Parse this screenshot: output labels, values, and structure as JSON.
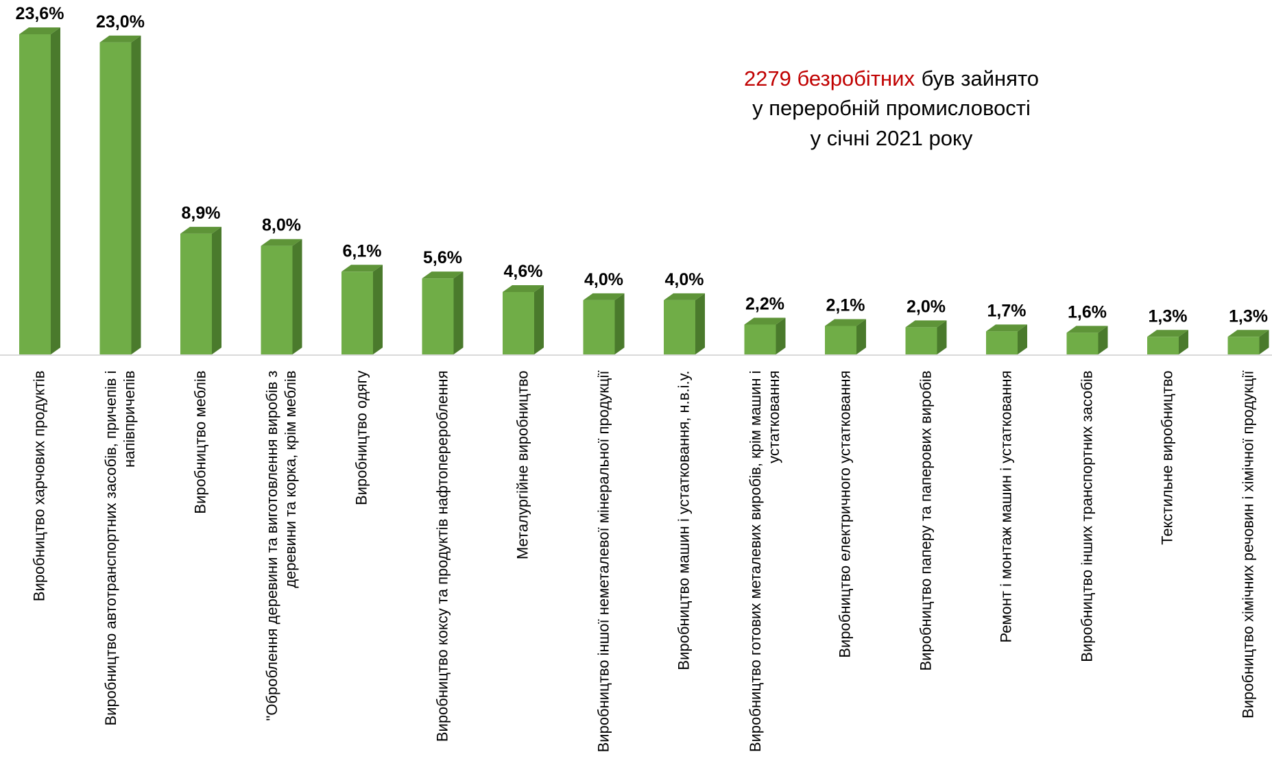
{
  "chart_data": {
    "type": "bar3d",
    "annotation": {
      "highlight": "2279 безробітних",
      "rest": "був зайнято",
      "lines": [
        "у переробній промисловості",
        "у січні 2021 року"
      ]
    },
    "categories": [
      "Виробництво харчових продуктів",
      "Виробництво автотранспортних засобів, причепів і напівпричепів",
      "Виробництво меблів",
      "\"Оброблення деревини та виготовлення виробів з деревини та корка, крім меблів",
      "Виробництво одягу",
      "Виробництво коксу та продуктів нафтоперероблення",
      "Металургійне виробництво",
      "Виробництво іншої неметалевої мінеральної продукції",
      "Виробництво машин і устатковання, н.в.і.у.",
      "Виробництво готових металевих виробів, крім машин і устатковання",
      "Виробництво електричного устатковання",
      "Виробництво паперу та паперових виробів",
      "Ремонт і монтаж машин і устатковання",
      "Виробництво інших транспортних засобів",
      "Текстильне виробництво",
      "Виробництво хімічних речовин і хімічної продукції"
    ],
    "values": [
      23.6,
      23.0,
      8.9,
      8.0,
      6.1,
      5.6,
      4.6,
      4.0,
      4.0,
      2.2,
      2.1,
      2.0,
      1.7,
      1.6,
      1.3,
      1.3
    ],
    "value_labels": [
      "23,6%",
      "23,0%",
      "8,9%",
      "8,0%",
      "6,1%",
      "5,6%",
      "4,6%",
      "4,0%",
      "4,0%",
      "2,2%",
      "2,1%",
      "2,0%",
      "1,7%",
      "1,6%",
      "1,3%",
      "1,3%"
    ],
    "colors": {
      "front": "#70ad47",
      "side": "#4a7a2c",
      "top": "#5e9438"
    }
  }
}
